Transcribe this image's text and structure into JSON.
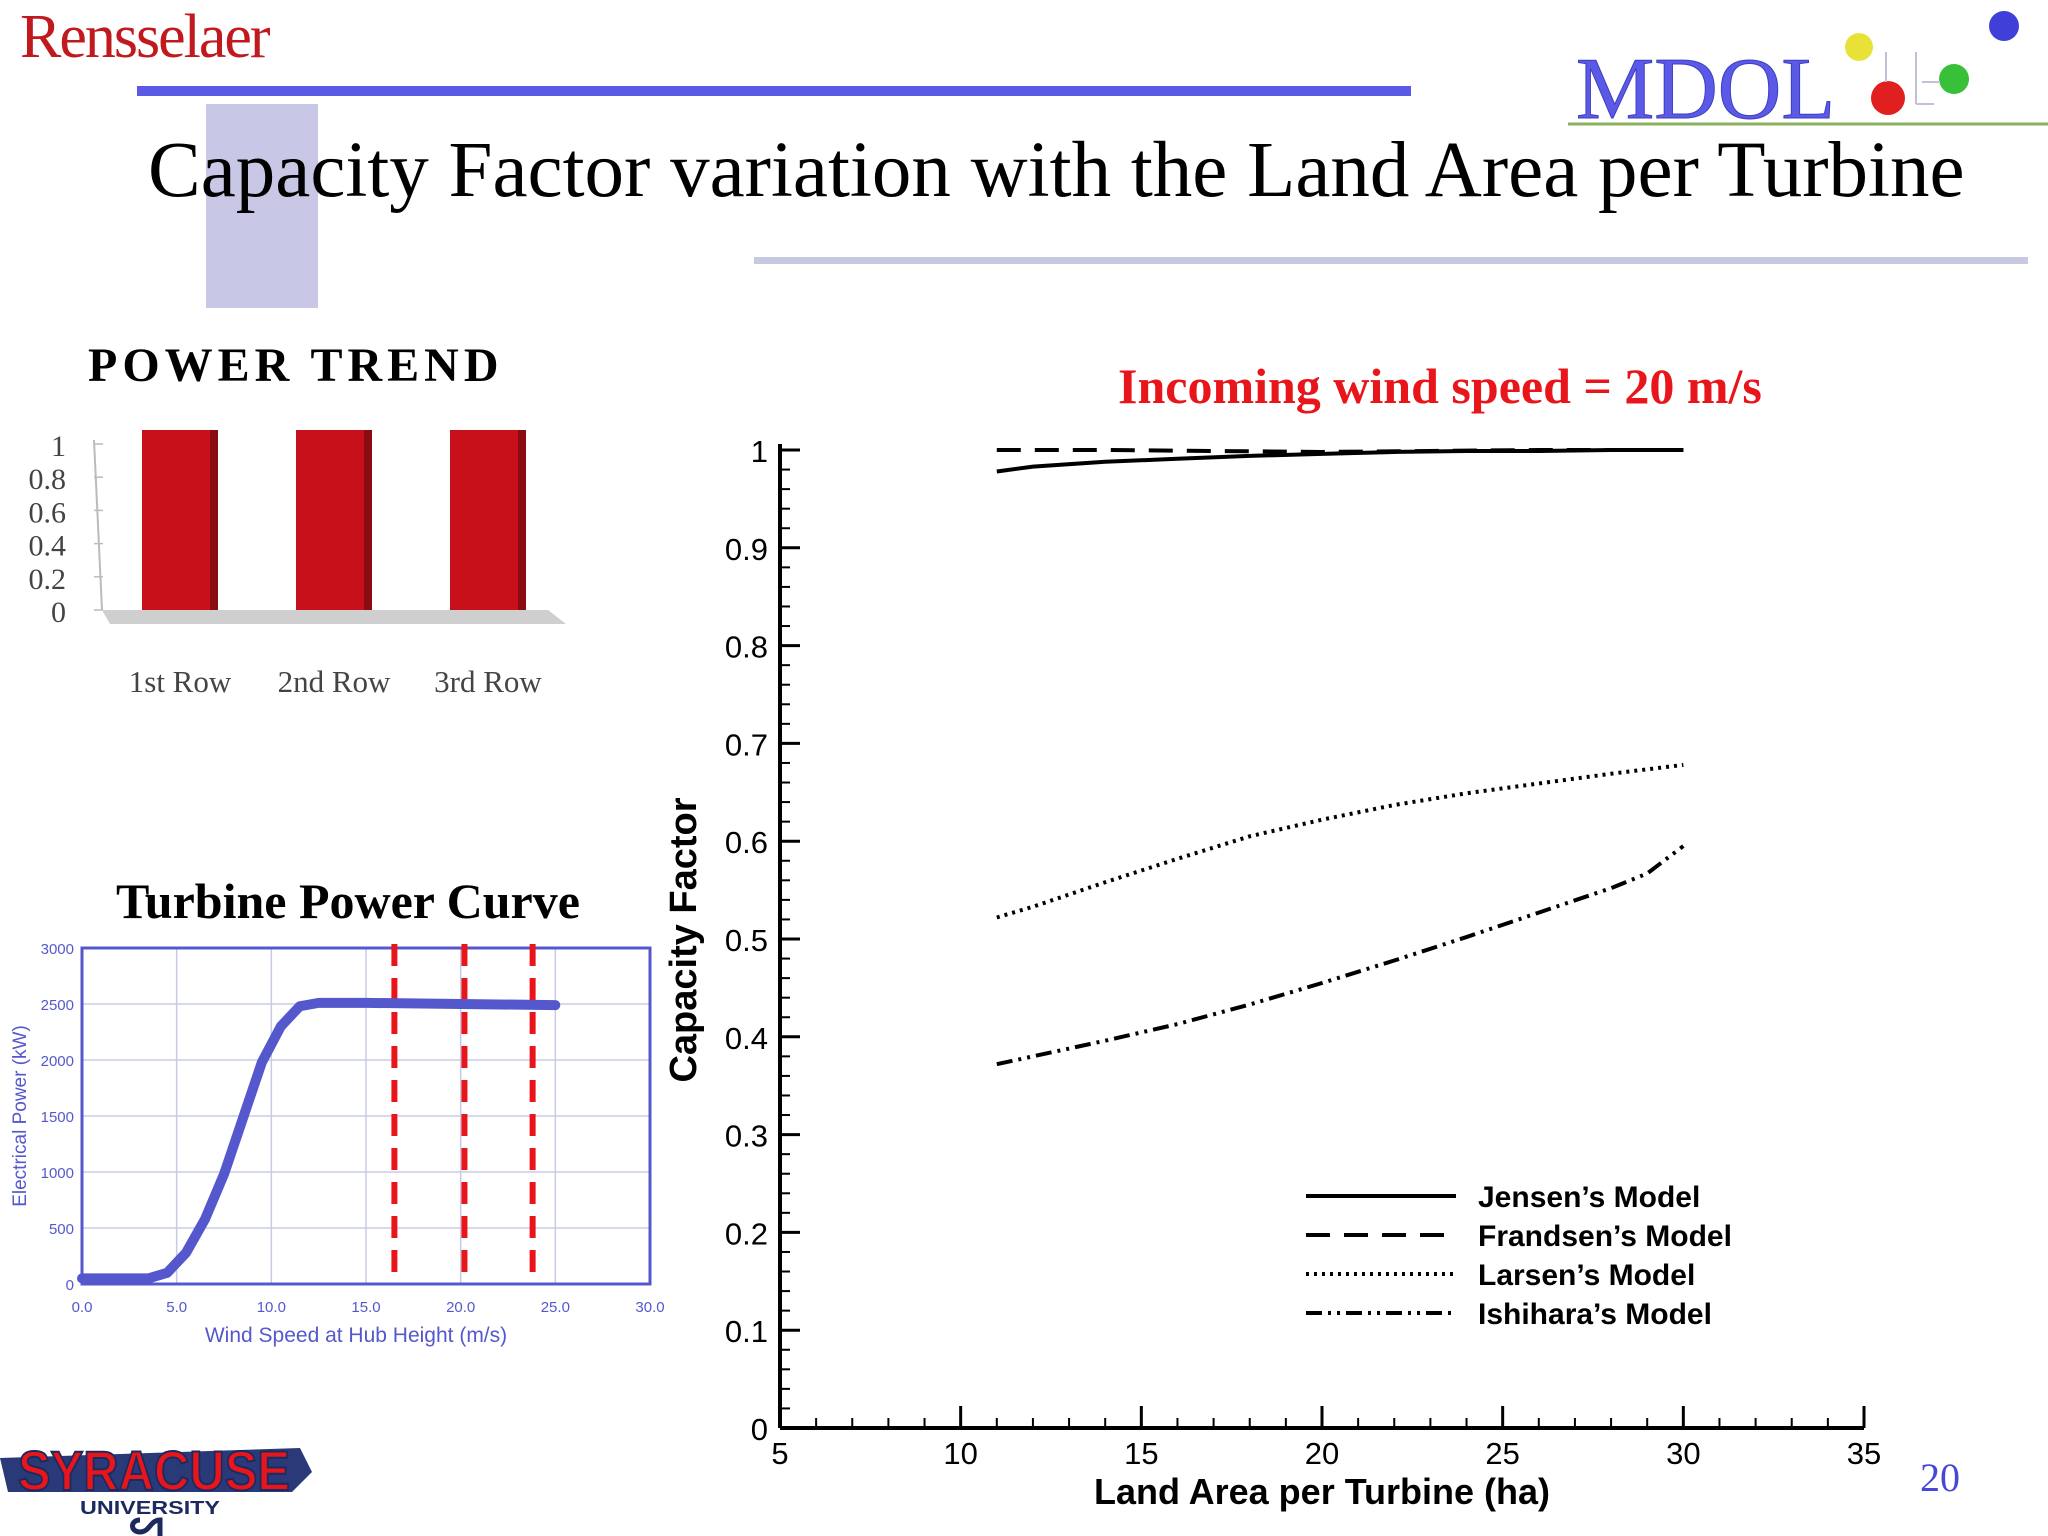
{
  "header": {
    "brand_left": "Rensselaer",
    "brand_right": "MDOL",
    "title": "Capacity Factor variation with the Land Area per Turbine",
    "page_number": "20"
  },
  "footer": {
    "logo_text": "SYRACUSE",
    "logo_subtext": "UNIVERSITY"
  },
  "colors": {
    "accent_blue": "#5a5ae6",
    "red": "#e8151b",
    "bar_red": "#c8101a",
    "curve_blue": "#5558cc"
  },
  "chart_data": [
    {
      "id": "power-trend",
      "type": "bar",
      "title": "POWER TREND",
      "categories": [
        "1st Row",
        "2nd Row",
        "3rd Row"
      ],
      "values": [
        1,
        1,
        1
      ],
      "ylim": [
        0,
        1
      ],
      "yticks": [
        "0",
        "0.2",
        "0.4",
        "0.6",
        "0.8",
        "1"
      ],
      "ytick_values": [
        0,
        0.2,
        0.4,
        0.6,
        0.8,
        1
      ],
      "grid": false
    },
    {
      "id": "turbine-power-curve",
      "type": "line",
      "title": "Turbine Power Curve",
      "xlabel": "Wind Speed at Hub Height (m/s)",
      "ylabel": "Electrical Power (kW)",
      "xlim": [
        0,
        30
      ],
      "ylim": [
        0,
        3000
      ],
      "xticks": [
        "0.0",
        "5.0",
        "10.0",
        "15.0",
        "20.0",
        "25.0",
        "30.0"
      ],
      "xtick_values": [
        0,
        5,
        10,
        15,
        20,
        25,
        30
      ],
      "yticks": [
        "0",
        "500",
        "1000",
        "1500",
        "2000",
        "2500",
        "3000"
      ],
      "ytick_values": [
        0,
        500,
        1000,
        1500,
        2000,
        2500,
        3000
      ],
      "grid": true,
      "series": [
        {
          "x": [
            0,
            2,
            3.5,
            4.5,
            5.5,
            6.5,
            7.5,
            8.5,
            9.5,
            10.5,
            11.5,
            12.5,
            13.5,
            15,
            20,
            25
          ],
          "y": [
            50,
            50,
            50,
            100,
            280,
            580,
            980,
            1480,
            1980,
            2300,
            2480,
            2510,
            2510,
            2510,
            2500,
            2490
          ]
        }
      ],
      "reference_lines_x": [
        16.5,
        20.2,
        23.8
      ]
    },
    {
      "id": "capacity-factor",
      "type": "line",
      "xlabel": "Land Area per Turbine (ha)",
      "ylabel": "Capacity Factor",
      "annotation": "Incoming wind speed = 20 m/s",
      "xlim": [
        5,
        35
      ],
      "ylim": [
        0,
        1
      ],
      "xticks": [
        "5",
        "10",
        "15",
        "20",
        "25",
        "30",
        "35"
      ],
      "xtick_values": [
        5,
        10,
        15,
        20,
        25,
        30,
        35
      ],
      "yticks": [
        "0",
        "0.1",
        "0.2",
        "0.3",
        "0.4",
        "0.5",
        "0.6",
        "0.7",
        "0.8",
        "0.9",
        "1"
      ],
      "ytick_values": [
        0,
        0.1,
        0.2,
        0.3,
        0.4,
        0.5,
        0.6,
        0.7,
        0.8,
        0.9,
        1
      ],
      "grid": false,
      "legend_position": "bottom-right",
      "series": [
        {
          "name": "Jensen’s Model",
          "style": "solid",
          "x": [
            11,
            12,
            14,
            16,
            18,
            20,
            22,
            24,
            26,
            28,
            30
          ],
          "y": [
            0.978,
            0.983,
            0.988,
            0.991,
            0.994,
            0.996,
            0.998,
            0.999,
            0.999,
            1.0,
            1.0
          ]
        },
        {
          "name": "Frandsen’s Model",
          "style": "dashed",
          "x": [
            11,
            14,
            17,
            20,
            23,
            26,
            28,
            30
          ],
          "y": [
            1.0,
            1.0,
            0.999,
            0.998,
            0.999,
            1.0,
            1.0,
            1.0
          ]
        },
        {
          "name": "Larsen’s Model",
          "style": "dotted",
          "x": [
            11,
            12,
            14,
            16,
            18,
            20,
            22,
            24,
            26,
            28,
            30
          ],
          "y": [
            0.522,
            0.533,
            0.558,
            0.582,
            0.605,
            0.622,
            0.637,
            0.649,
            0.659,
            0.669,
            0.678
          ]
        },
        {
          "name": "Ishihara’s Model",
          "style": "dashdot",
          "x": [
            11,
            12,
            14,
            16,
            18,
            20,
            22,
            24,
            26,
            28,
            29,
            30
          ],
          "y": [
            0.372,
            0.38,
            0.396,
            0.413,
            0.433,
            0.455,
            0.478,
            0.502,
            0.527,
            0.552,
            0.567,
            0.595
          ]
        }
      ]
    }
  ]
}
